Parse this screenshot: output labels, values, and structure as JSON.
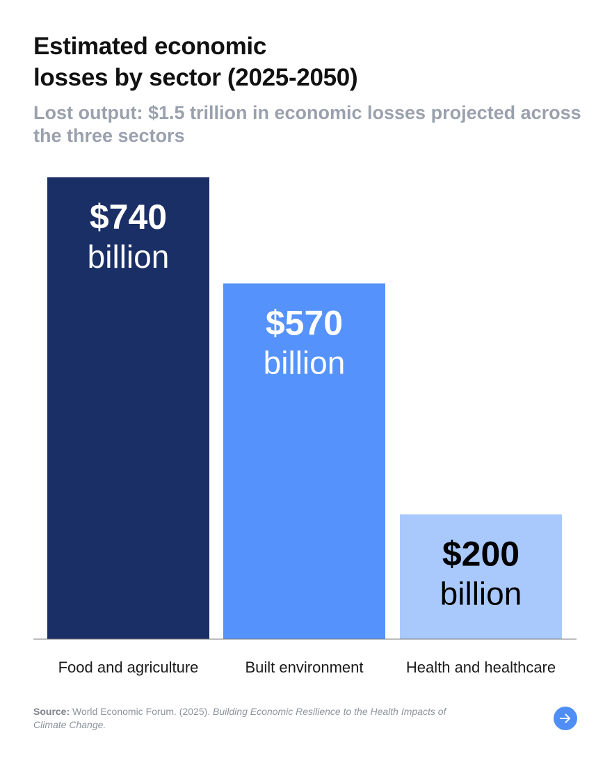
{
  "chart_data": {
    "type": "bar",
    "title_lines": [
      "Estimated economic",
      "losses by sector (2025-2050)"
    ],
    "subtitle": "Lost output: $1.5 trillion in economic losses projected across the three sectors",
    "categories": [
      "Food and agriculture",
      "Built environment",
      "Health and healthcare"
    ],
    "values": [
      740,
      570,
      200
    ],
    "value_labels": [
      "$740",
      "$570",
      "$200"
    ],
    "unit_label": "billion",
    "ylim": [
      0,
      740
    ],
    "grid": false,
    "legend": "none",
    "colors": [
      "#1a2f66",
      "#5592fb",
      "#a9c9fd"
    ],
    "value_label_colors": [
      "#ffffff",
      "#ffffff",
      "#000000"
    ]
  },
  "source": {
    "label": "Source:",
    "text": " World Economic Forum. (2025). ",
    "title": "Building Economic Resilience to the Health Impacts of Climate Change."
  },
  "icons": {
    "next": "arrow-right-icon"
  },
  "colors": {
    "accent": "#4f8ef7",
    "title": "#111111",
    "subtitle": "#9aa1ad"
  }
}
